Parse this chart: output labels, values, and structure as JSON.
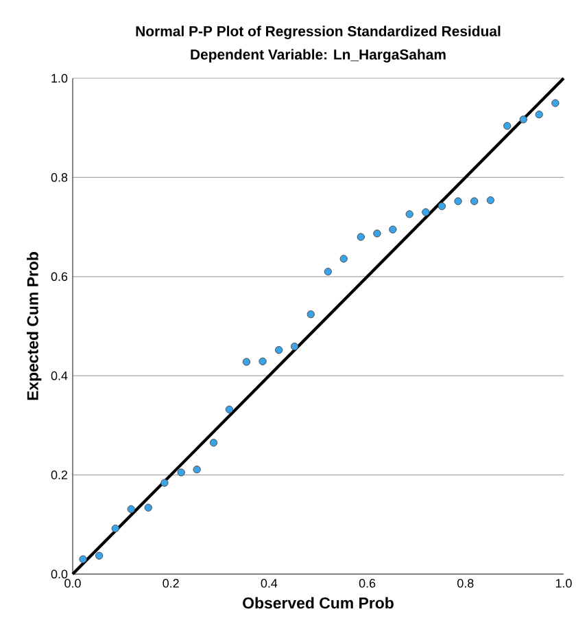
{
  "chart_data": {
    "type": "scatter",
    "title": "Normal P-P Plot of Regression Standardized Residual",
    "subtitle": "Dependent Variable: Ln_HargaSaham",
    "xlabel": "Observed Cum Prob",
    "ylabel": "Expected Cum Prob",
    "series": [
      {
        "color": "#3ba3e8",
        "marker": "circle",
        "x": [
          0.021,
          0.054,
          0.087,
          0.119,
          0.154,
          0.187,
          0.221,
          0.253,
          0.287,
          0.319,
          0.354,
          0.387,
          0.42,
          0.452,
          0.485,
          0.52,
          0.552,
          0.587,
          0.62,
          0.652,
          0.686,
          0.719,
          0.752,
          0.785,
          0.818,
          0.851,
          0.885,
          0.918,
          0.95,
          0.983
        ],
        "values": [
          0.03,
          0.037,
          0.092,
          0.131,
          0.134,
          0.184,
          0.205,
          0.211,
          0.265,
          0.332,
          0.428,
          0.429,
          0.452,
          0.459,
          0.524,
          0.61,
          0.636,
          0.68,
          0.687,
          0.695,
          0.726,
          0.73,
          0.742,
          0.752,
          0.752,
          0.754,
          0.904,
          0.917,
          0.927,
          0.95
        ]
      },
      {
        "type": "line",
        "color": "#000000",
        "marker": "none",
        "x": [
          0,
          1
        ],
        "values": [
          0,
          1
        ]
      }
    ],
    "grid": "y",
    "xlim": [
      0,
      1
    ],
    "ylim": [
      0,
      1
    ],
    "xticks": [
      {
        "value": 0,
        "label": "0.0"
      },
      {
        "value": 0.2,
        "label": "0.2"
      },
      {
        "value": 0.4,
        "label": "0.4"
      },
      {
        "value": 0.6,
        "label": "0.6"
      },
      {
        "value": 0.8,
        "label": "0.8"
      },
      {
        "value": 1,
        "label": "1.0"
      }
    ],
    "yticks": [
      {
        "value": 0,
        "label": "0.0"
      },
      {
        "value": 0.2,
        "label": "0.2"
      },
      {
        "value": 0.4,
        "label": "0.4"
      },
      {
        "value": 0.6,
        "label": "0.6"
      },
      {
        "value": 0.8,
        "label": "0.8"
      },
      {
        "value": 1,
        "label": "1.0"
      }
    ]
  }
}
